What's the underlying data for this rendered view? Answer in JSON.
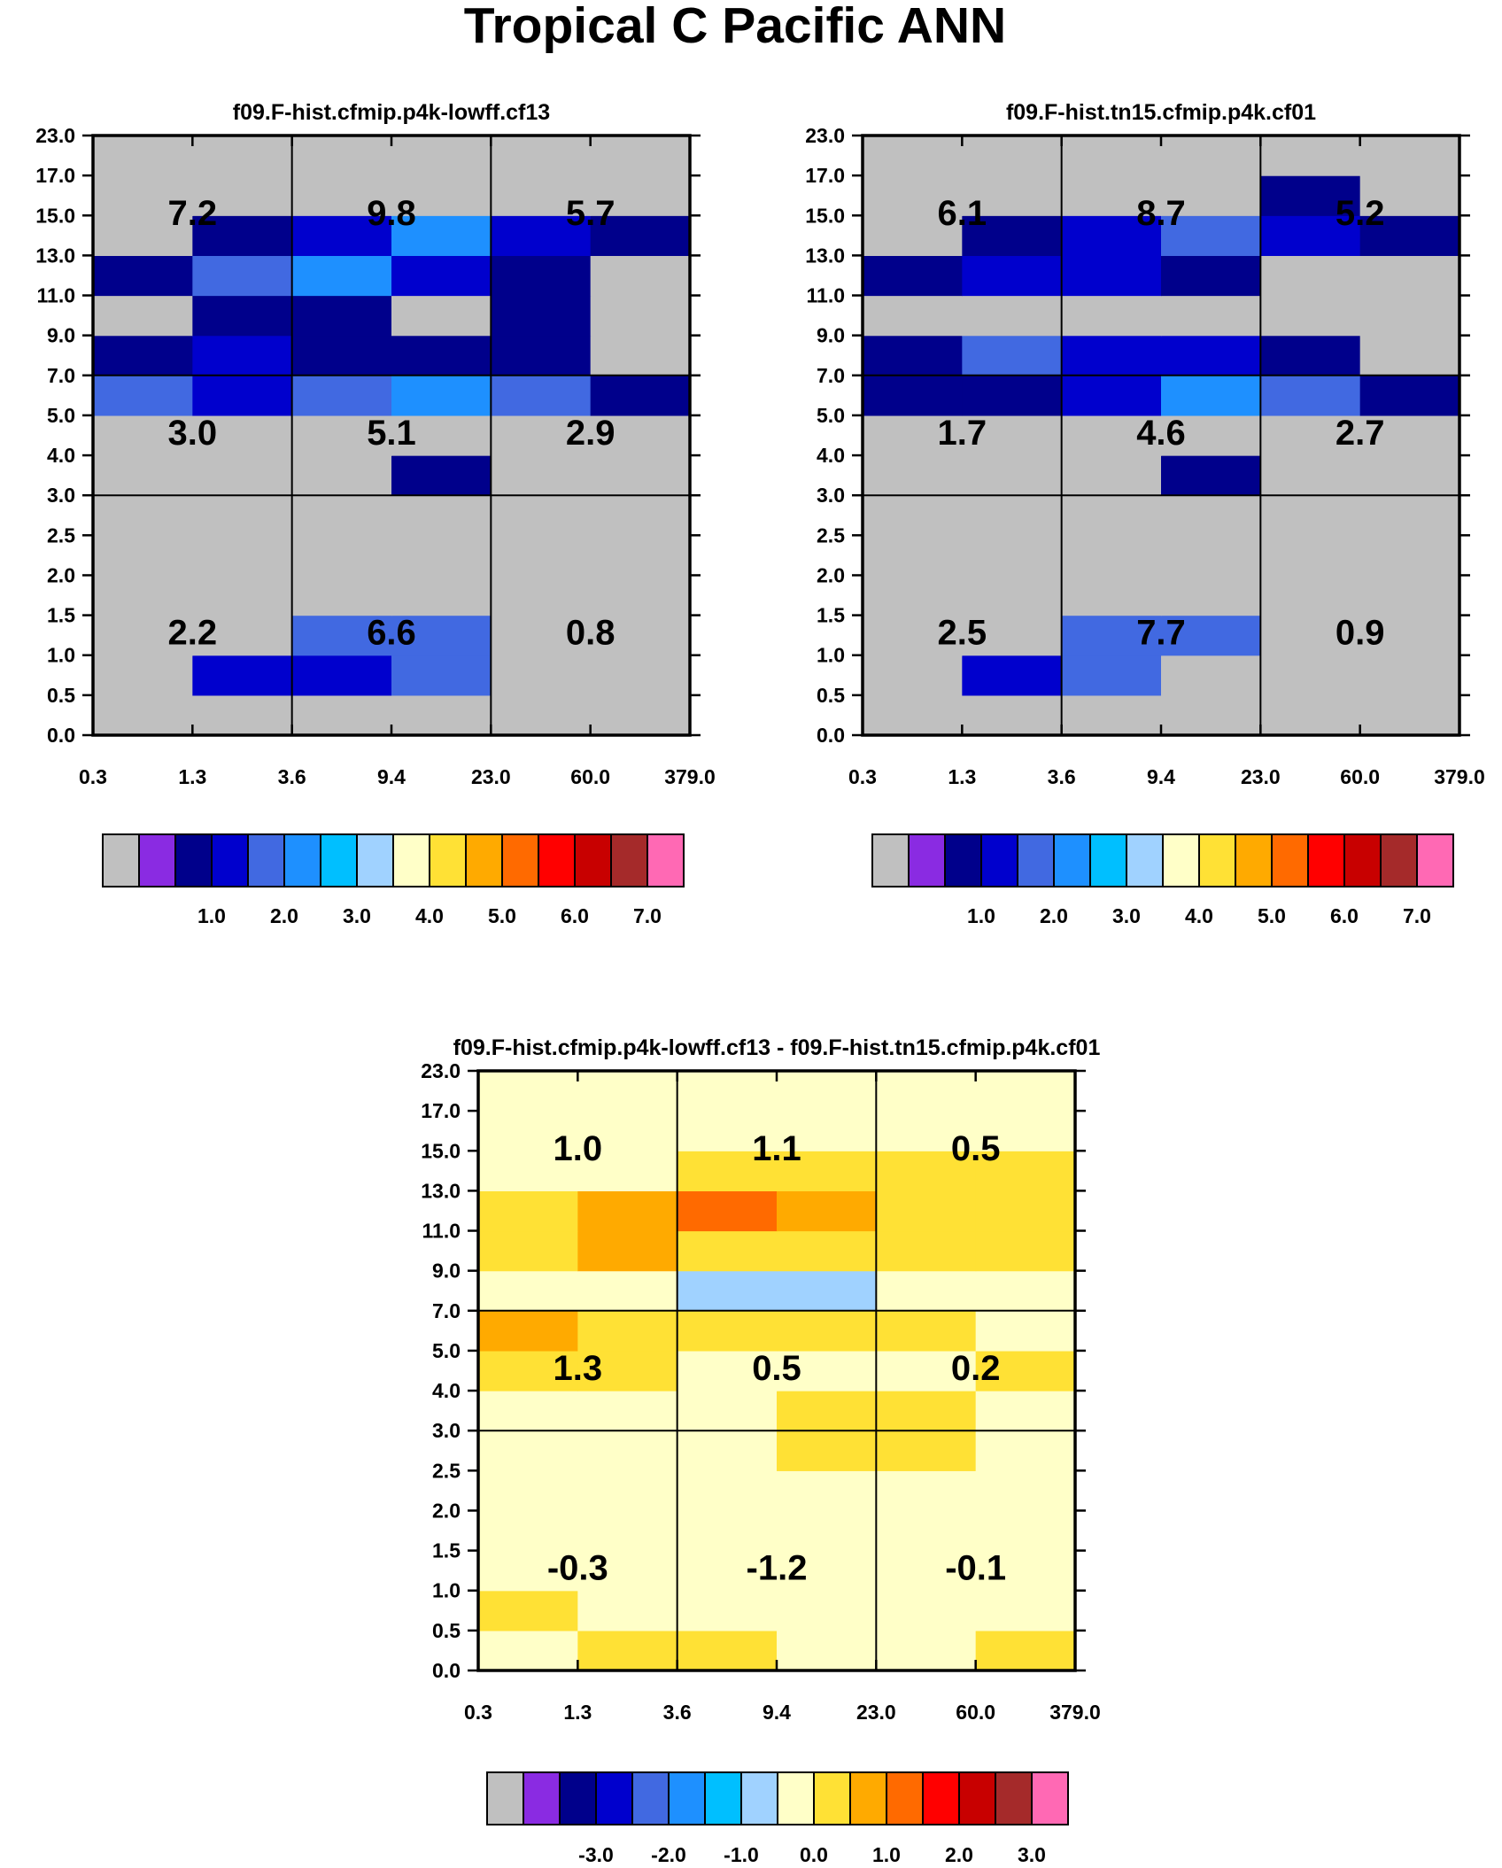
{
  "title": "Tropical C Pacific ANN",
  "chart_data": [
    {
      "type": "heatmap",
      "title": "f09.F-hist.cfmip.p4k-lowff.cf13",
      "x_ticks": [
        "0.3",
        "1.3",
        "3.6",
        "9.4",
        "23.0",
        "60.0",
        "379.0"
      ],
      "y_ticks": [
        "0.0",
        "0.5",
        "1.0",
        "1.5",
        "2.0",
        "2.5",
        "3.0",
        "4.0",
        "5.0",
        "7.0",
        "9.0",
        "11.0",
        "13.0",
        "15.0",
        "17.0",
        "23.0"
      ],
      "grid": [
        [
          -1,
          -1,
          -1,
          -1,
          -1,
          -1
        ],
        [
          -1,
          2,
          2,
          3,
          -1,
          -1
        ],
        [
          -1,
          -1,
          3,
          3,
          -1,
          -1
        ],
        [
          -1,
          -1,
          -1,
          -1,
          -1,
          -1
        ],
        [
          -1,
          -1,
          -1,
          -1,
          -1,
          -1
        ],
        [
          -1,
          -1,
          -1,
          -1,
          -1,
          -1
        ],
        [
          -1,
          -1,
          -1,
          1,
          -1,
          -1
        ],
        [
          -1,
          -1,
          -1,
          -1,
          -1,
          -1
        ],
        [
          3,
          2,
          3,
          4,
          3,
          1
        ],
        [
          1,
          2,
          1,
          1,
          1,
          -1
        ],
        [
          -1,
          1,
          1,
          -1,
          1,
          -1
        ],
        [
          1,
          3,
          4,
          2,
          1,
          -1
        ],
        [
          -1,
          1,
          2,
          4,
          2,
          1
        ],
        [
          -1,
          -1,
          -1,
          -1,
          -1,
          -1
        ],
        [
          -1,
          -1,
          -1,
          -1,
          -1,
          -1
        ]
      ],
      "box_values": [
        [
          "7.2",
          "9.8",
          "5.7"
        ],
        [
          "3.0",
          "5.1",
          "2.9"
        ],
        [
          "2.2",
          "6.6",
          "0.8"
        ]
      ],
      "colorbar": {
        "colors": [
          "#c0c0c0",
          "#8a2be2",
          "#00008b",
          "#0000cd",
          "#4169e1",
          "#1e90ff",
          "#00bfff",
          "#a0d2ff",
          "#ffffc8",
          "#ffe135",
          "#ffaa00",
          "#ff6a00",
          "#ff0000",
          "#c80000",
          "#a52a2a",
          "#ff69b4"
        ],
        "labels": [
          "1.0",
          "2.0",
          "3.0",
          "4.0",
          "5.0",
          "6.0",
          "7.0"
        ]
      }
    },
    {
      "type": "heatmap",
      "title": "f09.F-hist.tn15.cfmip.p4k.cf01",
      "x_ticks": [
        "0.3",
        "1.3",
        "3.6",
        "9.4",
        "23.0",
        "60.0",
        "379.0"
      ],
      "y_ticks": [
        "0.0",
        "0.5",
        "1.0",
        "1.5",
        "2.0",
        "2.5",
        "3.0",
        "4.0",
        "5.0",
        "7.0",
        "9.0",
        "11.0",
        "13.0",
        "15.0",
        "17.0",
        "23.0"
      ],
      "grid": [
        [
          -1,
          -1,
          -1,
          -1,
          -1,
          -1
        ],
        [
          -1,
          2,
          3,
          -1,
          -1,
          -1
        ],
        [
          -1,
          -1,
          3,
          3,
          -1,
          -1
        ],
        [
          -1,
          -1,
          -1,
          -1,
          -1,
          -1
        ],
        [
          -1,
          -1,
          -1,
          -1,
          -1,
          -1
        ],
        [
          -1,
          -1,
          -1,
          -1,
          -1,
          -1
        ],
        [
          -1,
          -1,
          -1,
          1,
          -1,
          -1
        ],
        [
          -1,
          -1,
          -1,
          -1,
          -1,
          -1
        ],
        [
          1,
          1,
          2,
          4,
          3,
          1
        ],
        [
          1,
          3,
          2,
          2,
          1,
          -1
        ],
        [
          -1,
          -1,
          -1,
          -1,
          -1,
          -1
        ],
        [
          1,
          2,
          2,
          1,
          -1,
          -1
        ],
        [
          -1,
          1,
          2,
          3,
          2,
          1
        ],
        [
          -1,
          -1,
          -1,
          -1,
          1,
          -1
        ],
        [
          -1,
          -1,
          -1,
          -1,
          -1,
          -1
        ]
      ],
      "box_values": [
        [
          "6.1",
          "8.7",
          "5.2"
        ],
        [
          "1.7",
          "4.6",
          "2.7"
        ],
        [
          "2.5",
          "7.7",
          "0.9"
        ]
      ],
      "colorbar": {
        "colors": [
          "#c0c0c0",
          "#8a2be2",
          "#00008b",
          "#0000cd",
          "#4169e1",
          "#1e90ff",
          "#00bfff",
          "#a0d2ff",
          "#ffffc8",
          "#ffe135",
          "#ffaa00",
          "#ff6a00",
          "#ff0000",
          "#c80000",
          "#a52a2a",
          "#ff69b4"
        ],
        "labels": [
          "1.0",
          "2.0",
          "3.0",
          "4.0",
          "5.0",
          "6.0",
          "7.0"
        ]
      }
    },
    {
      "type": "heatmap",
      "title": "f09.F-hist.cfmip.p4k-lowff.cf13 - f09.F-hist.tn15.cfmip.p4k.cf01",
      "x_ticks": [
        "0.3",
        "1.3",
        "3.6",
        "9.4",
        "23.0",
        "60.0",
        "379.0"
      ],
      "y_ticks": [
        "0.0",
        "0.5",
        "1.0",
        "1.5",
        "2.0",
        "2.5",
        "3.0",
        "4.0",
        "5.0",
        "7.0",
        "9.0",
        "11.0",
        "13.0",
        "15.0",
        "17.0",
        "23.0"
      ],
      "grid": [
        [
          7,
          8,
          8,
          7,
          7,
          8
        ],
        [
          8,
          7,
          7,
          7,
          7,
          7
        ],
        [
          7,
          7,
          7,
          7,
          7,
          7
        ],
        [
          7,
          7,
          7,
          7,
          7,
          7
        ],
        [
          7,
          7,
          7,
          7,
          7,
          7
        ],
        [
          7,
          7,
          7,
          8,
          8,
          7
        ],
        [
          7,
          7,
          7,
          8,
          8,
          7
        ],
        [
          8,
          8,
          7,
          7,
          7,
          8
        ],
        [
          9,
          8,
          8,
          8,
          8,
          7
        ],
        [
          7,
          7,
          6,
          6,
          7,
          7
        ],
        [
          8,
          9,
          8,
          8,
          8,
          8
        ],
        [
          8,
          9,
          10,
          9,
          8,
          8
        ],
        [
          7,
          7,
          8,
          8,
          8,
          8
        ],
        [
          7,
          7,
          7,
          7,
          7,
          7
        ],
        [
          7,
          7,
          7,
          7,
          7,
          7
        ]
      ],
      "box_values": [
        [
          "1.0",
          "1.1",
          "0.5"
        ],
        [
          "1.3",
          "0.5",
          "0.2"
        ],
        [
          "-0.3",
          "-1.2",
          "-0.1"
        ]
      ],
      "colorbar": {
        "colors": [
          "#c0c0c0",
          "#8a2be2",
          "#00008b",
          "#0000cd",
          "#4169e1",
          "#1e90ff",
          "#00bfff",
          "#a0d2ff",
          "#ffffc8",
          "#ffe135",
          "#ffaa00",
          "#ff6a00",
          "#ff0000",
          "#c80000",
          "#a52a2a",
          "#ff69b4"
        ],
        "labels": [
          "-3.0",
          "-2.0",
          "-1.0",
          "0.0",
          "1.0",
          "2.0",
          "3.0"
        ]
      }
    }
  ]
}
